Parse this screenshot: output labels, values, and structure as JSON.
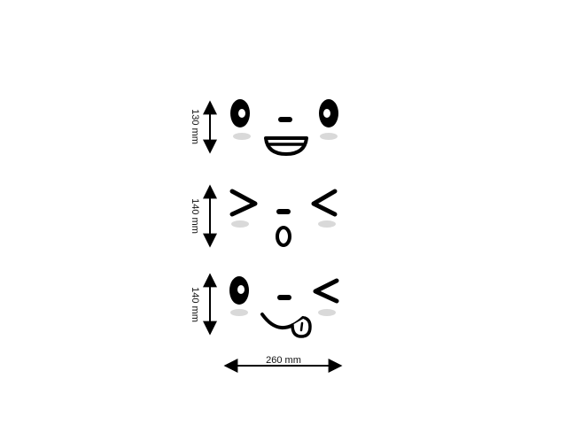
{
  "dimensions": {
    "face_1_height": "130 mm",
    "face_2_height": "140 mm",
    "face_3_height": "140 mm",
    "overall_width": "260 mm"
  },
  "faces": [
    {
      "name": "happy-face",
      "eyes": "open",
      "mouth": "open smile"
    },
    {
      "name": "squint-face",
      "eyes": "squinting chevrons",
      "mouth": "small o"
    },
    {
      "name": "wink-face",
      "eyes": "one open, one winking",
      "mouth": "smile with tongue"
    }
  ],
  "colors": {
    "ink": "#000000",
    "blush": "#d9d9d9",
    "background": "#ffffff"
  }
}
